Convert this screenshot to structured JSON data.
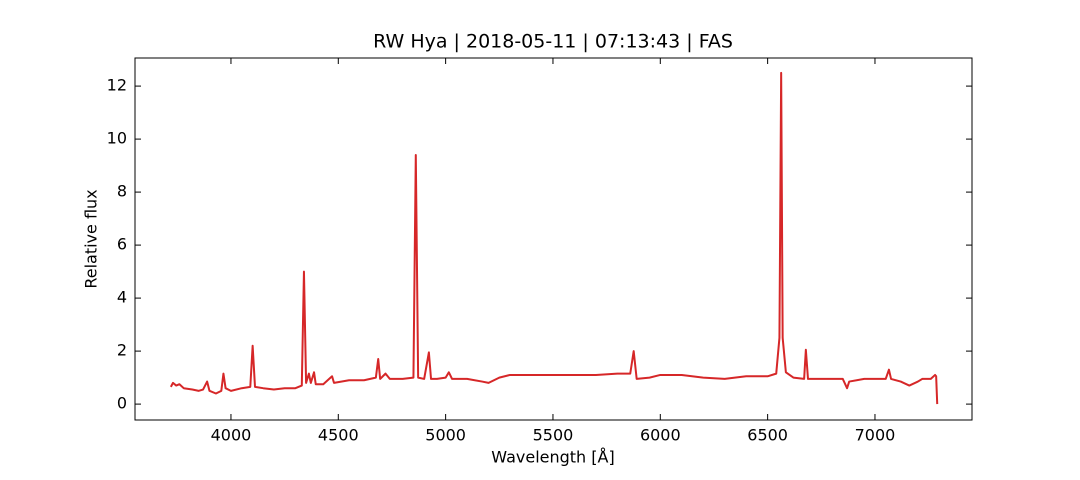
{
  "chart_data": {
    "type": "line",
    "title": "RW Hya | 2018-05-11 | 07:13:43 | FAS",
    "xlabel": "Wavelength [Å]",
    "ylabel": "Relative flux",
    "xlim": [
      3553,
      7452
    ],
    "ylim": [
      -0.6,
      13.06
    ],
    "xticks": [
      4000,
      4500,
      5000,
      5500,
      6000,
      6500,
      7000
    ],
    "yticks": [
      0,
      2,
      4,
      6,
      8,
      10,
      12
    ],
    "x": [
      3720,
      3730,
      3745,
      3760,
      3780,
      3820,
      3850,
      3870,
      3889,
      3900,
      3930,
      3955,
      3965,
      3975,
      4000,
      4050,
      4090,
      4101,
      4112,
      4150,
      4200,
      4250,
      4300,
      4330,
      4340,
      4350,
      4363,
      4372,
      4387,
      4395,
      4430,
      4471,
      4480,
      4550,
      4620,
      4675,
      4686,
      4695,
      4720,
      4740,
      4800,
      4850,
      4861,
      4872,
      4900,
      4922,
      4932,
      4960,
      5000,
      5015,
      5030,
      5100,
      5170,
      5200,
      5250,
      5300,
      5400,
      5500,
      5600,
      5700,
      5800,
      5860,
      5876,
      5890,
      5950,
      6000,
      6100,
      6200,
      6300,
      6400,
      6500,
      6540,
      6555,
      6563,
      6570,
      6585,
      6620,
      6670,
      6678,
      6688,
      6750,
      6850,
      6870,
      6880,
      6950,
      7050,
      7065,
      7075,
      7120,
      7160,
      7200,
      7220,
      7260,
      7280,
      7285,
      7290
    ],
    "series": [
      {
        "color": "#d62728",
        "values": [
          0.65,
          0.8,
          0.7,
          0.75,
          0.6,
          0.55,
          0.5,
          0.55,
          0.85,
          0.5,
          0.4,
          0.5,
          1.15,
          0.6,
          0.5,
          0.6,
          0.65,
          2.2,
          0.65,
          0.6,
          0.55,
          0.6,
          0.6,
          0.7,
          5.0,
          0.8,
          1.15,
          0.8,
          1.2,
          0.75,
          0.75,
          1.05,
          0.8,
          0.9,
          0.9,
          1.0,
          1.7,
          0.95,
          1.15,
          0.95,
          0.95,
          1.0,
          9.4,
          1.0,
          0.95,
          1.95,
          0.95,
          0.95,
          1.0,
          1.2,
          0.95,
          0.95,
          0.85,
          0.8,
          1.0,
          1.1,
          1.1,
          1.1,
          1.1,
          1.1,
          1.15,
          1.15,
          2.0,
          0.95,
          1.0,
          1.1,
          1.1,
          1.0,
          0.95,
          1.05,
          1.05,
          1.15,
          2.5,
          12.5,
          2.5,
          1.2,
          1.0,
          0.95,
          2.05,
          0.95,
          0.95,
          0.95,
          0.6,
          0.85,
          0.95,
          0.95,
          1.3,
          0.95,
          0.85,
          0.7,
          0.85,
          0.95,
          0.95,
          1.1,
          1.05,
          0.0
        ]
      }
    ]
  }
}
